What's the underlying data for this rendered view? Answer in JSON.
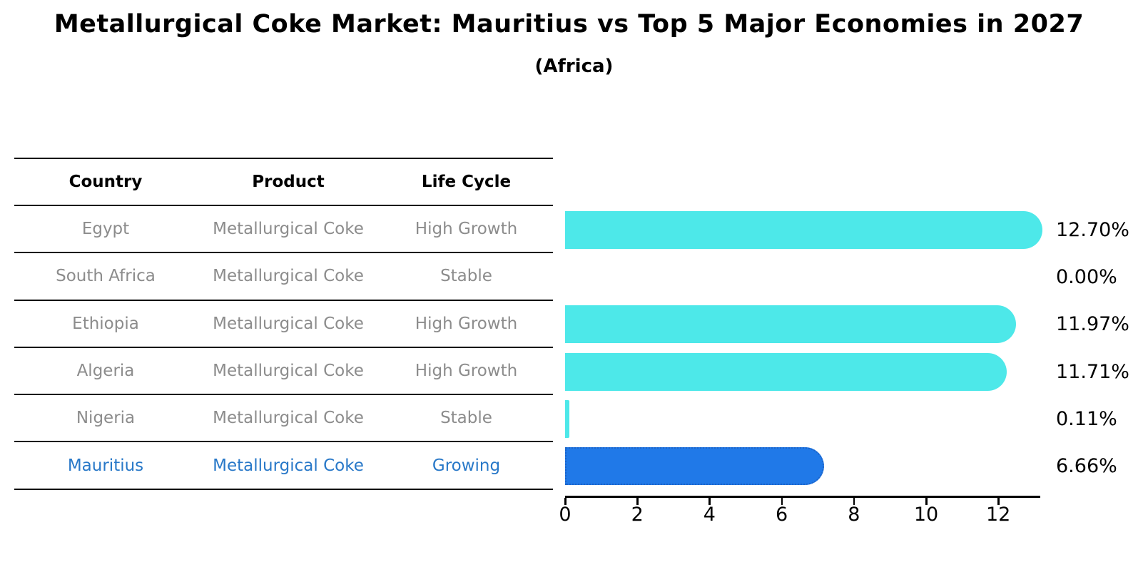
{
  "title": "Metallurgical Coke Market: Mauritius vs Top 5 Major Economies in 2027",
  "subtitle": "(Africa)",
  "table": {
    "headers": [
      "Country",
      "Product",
      "Life Cycle"
    ],
    "rows": [
      {
        "country": "Egypt",
        "product": "Metallurgical Coke",
        "life_cycle": "High Growth",
        "highlighted": false
      },
      {
        "country": "South Africa",
        "product": "Metallurgical Coke",
        "life_cycle": "Stable",
        "highlighted": false
      },
      {
        "country": "Ethiopia",
        "product": "Metallurgical Coke",
        "life_cycle": "High Growth",
        "highlighted": false
      },
      {
        "country": "Algeria",
        "product": "Metallurgical Coke",
        "life_cycle": "High Growth",
        "highlighted": false
      },
      {
        "country": "Nigeria",
        "product": "Metallurgical Coke",
        "life_cycle": "Stable",
        "highlighted": false
      },
      {
        "country": "Mauritius",
        "product": "Metallurgical Coke",
        "life_cycle": "Growing",
        "highlighted": true
      }
    ]
  },
  "chart_data": {
    "type": "bar",
    "orientation": "horizontal",
    "title": "Metallurgical Coke Market: Mauritius vs Top 5 Major Economies in 2027",
    "subtitle": "(Africa)",
    "categories": [
      "Egypt",
      "South Africa",
      "Ethiopia",
      "Algeria",
      "Nigeria",
      "Mauritius"
    ],
    "values": [
      12.7,
      0.0,
      11.97,
      11.71,
      0.11,
      6.66
    ],
    "value_labels": [
      "12.70%",
      "0.00%",
      "11.97%",
      "11.71%",
      "0.11%",
      "6.66%"
    ],
    "x_ticks": [
      0,
      2,
      4,
      6,
      8,
      10,
      12
    ],
    "xlim": [
      0,
      13.2
    ],
    "grid": false,
    "legend": false,
    "highlight_index": 5,
    "bar_color": "#4DE8E9",
    "highlight_bar_color": "#2079E8",
    "highlight_edge_color": "#1C64C8",
    "highlight_text_color": "#2878C8",
    "row_text_color": "#8c8c8c"
  }
}
